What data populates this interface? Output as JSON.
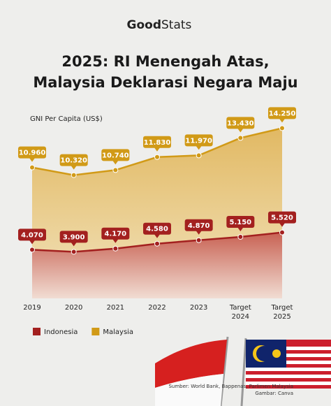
{
  "chart_data": {
    "type": "area",
    "brand": "Good",
    "brand_suffix": "Stats",
    "title": [
      "2025: RI Menengah Atas,",
      "Malaysia Deklarasi Negara Maju"
    ],
    "y_label": "GNI Per Capita (US$)",
    "categories": [
      "2019",
      "2020",
      "2021",
      "2022",
      "2023",
      "Target 2024",
      "Target 2025"
    ],
    "ylim": [
      0,
      16000
    ],
    "series": [
      {
        "name": "Malaysia",
        "color": "#d19a17",
        "values": [
          10960,
          10320,
          10740,
          11830,
          11970,
          13430,
          14250
        ],
        "value_labels": [
          "10.960",
          "10.320",
          "10.740",
          "11.830",
          "11.970",
          "13.430",
          "14.250"
        ]
      },
      {
        "name": "Indonesia",
        "color": "#a3201f",
        "values": [
          4070,
          3900,
          4170,
          4580,
          4870,
          5150,
          5520
        ],
        "value_labels": [
          "4.070",
          "3.900",
          "4.170",
          "4.580",
          "4.870",
          "5.150",
          "5.520"
        ]
      }
    ],
    "legend_order": [
      1,
      0
    ],
    "source": "Sumber: World Bank, Bappenas, Parlimen Malaysia",
    "credit": "Gambar: Canva"
  }
}
